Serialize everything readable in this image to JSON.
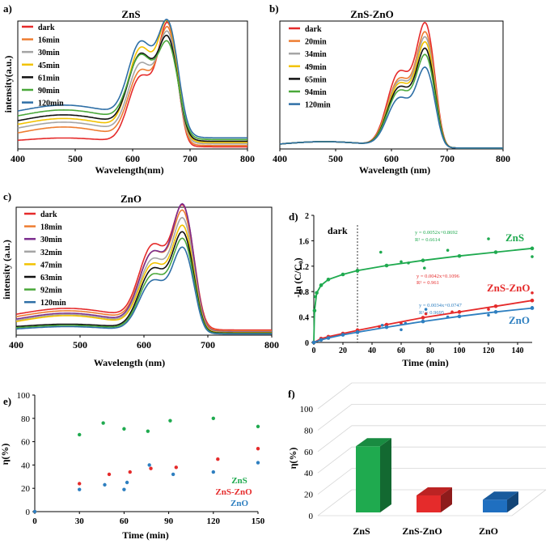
{
  "chart_data": [
    {
      "panel": "a)",
      "type": "line",
      "title": "ZnS",
      "xlabel": "Wavelength(nm)",
      "ylabel": "intensity(a.u.)",
      "xlim": [
        400,
        800
      ],
      "xticks": [
        "400",
        "500",
        "600",
        "700",
        "800"
      ],
      "legend_position": "top-left",
      "series": [
        {
          "name": "dark",
          "color": "#e52b2b",
          "peak": 0.95,
          "shoulder": 0.55,
          "base": 0.05
        },
        {
          "name": "16min",
          "color": "#ed7d31",
          "peak": 0.88,
          "shoulder": 0.56,
          "base": 0.08
        },
        {
          "name": "30min",
          "color": "#a5a5a5",
          "peak": 0.8,
          "shoulder": 0.58,
          "base": 0.12
        },
        {
          "name": "45min",
          "color": "#f2c200",
          "peak": 0.85,
          "shoulder": 0.68,
          "base": 0.15
        },
        {
          "name": "61min",
          "color": "#111111",
          "peak": 0.7,
          "shoulder": 0.6,
          "base": 0.18
        },
        {
          "name": "90min",
          "color": "#4aa83a",
          "peak": 0.62,
          "shoulder": 0.55,
          "base": 0.22
        },
        {
          "name": "120min",
          "color": "#2e6fa6",
          "peak": 0.75,
          "shoulder": 0.62,
          "base": 0.26
        }
      ]
    },
    {
      "panel": "b)",
      "type": "line",
      "title": "ZnS-ZnO",
      "xlabel": "Wavelength (nm)",
      "ylabel": "",
      "xlim": [
        400,
        800
      ],
      "xticks": [
        "400",
        "500",
        "600",
        "700",
        "800"
      ],
      "legend_position": "top-left",
      "series": [
        {
          "name": "dark",
          "color": "#e52b2b",
          "peak": 0.97,
          "shoulder": 0.62,
          "base": 0.02
        },
        {
          "name": "20min",
          "color": "#ed7d31",
          "peak": 0.9,
          "shoulder": 0.56,
          "base": 0.02
        },
        {
          "name": "34min",
          "color": "#a5a5a5",
          "peak": 0.86,
          "shoulder": 0.54,
          "base": 0.02
        },
        {
          "name": "49min",
          "color": "#f2c200",
          "peak": 0.82,
          "shoulder": 0.52,
          "base": 0.02
        },
        {
          "name": "65min",
          "color": "#111111",
          "peak": 0.77,
          "shoulder": 0.49,
          "base": 0.02
        },
        {
          "name": "94min",
          "color": "#4aa83a",
          "peak": 0.72,
          "shoulder": 0.46,
          "base": 0.02
        },
        {
          "name": "120min",
          "color": "#2e6fa6",
          "peak": 0.62,
          "shoulder": 0.4,
          "base": 0.02
        }
      ]
    },
    {
      "panel": "c)",
      "type": "line",
      "title": "ZnO",
      "xlabel": "Wavelength (nm)",
      "ylabel": "intensity (a.u.)",
      "xlim": [
        400,
        800
      ],
      "xticks": [
        "400",
        "500",
        "600",
        "700",
        "800"
      ],
      "legend_position": "top-left",
      "series": [
        {
          "name": "dark",
          "color": "#e52b2b",
          "peak": 0.9,
          "shoulder": 0.62,
          "base": 0.12
        },
        {
          "name": "18min",
          "color": "#ed7d31",
          "peak": 0.88,
          "shoulder": 0.58,
          "base": 0.1
        },
        {
          "name": "30min",
          "color": "#7b2d8e",
          "peak": 0.95,
          "shoulder": 0.6,
          "base": 0.08
        },
        {
          "name": "32min",
          "color": "#a5a5a5",
          "peak": 0.85,
          "shoulder": 0.55,
          "base": 0.07
        },
        {
          "name": "47min",
          "color": "#f2c200",
          "peak": 0.8,
          "shoulder": 0.52,
          "base": 0.06
        },
        {
          "name": "63min",
          "color": "#111111",
          "peak": 0.76,
          "shoulder": 0.5,
          "base": 0.05
        },
        {
          "name": "92min",
          "color": "#4aa83a",
          "peak": 0.72,
          "shoulder": 0.46,
          "base": 0.04
        },
        {
          "name": "120min",
          "color": "#2e6fa6",
          "peak": 0.66,
          "shoulder": 0.42,
          "base": 0.03
        }
      ]
    },
    {
      "panel": "d)",
      "type": "scatter",
      "title": "",
      "xlabel": "Time (min)",
      "ylabel": "-ln (C/C₀)",
      "xlim": [
        0,
        150
      ],
      "ylim": [
        0,
        2
      ],
      "xticks": [
        "0",
        "20",
        "40",
        "60",
        "80",
        "100",
        "120",
        "140"
      ],
      "yticks": [
        "0",
        "0.4",
        "0.8",
        "1.2",
        "1.6",
        "2"
      ],
      "annotation": "dark",
      "dark_line_x": 30,
      "series": [
        {
          "name": "ZnS",
          "color": "#1faa4f",
          "equation": "y = 0.0052x+0.8692",
          "r2": "R² = 0.6614",
          "points": [
            [
              0,
              0
            ],
            [
              1,
              0.72
            ],
            [
              30,
              1.12
            ],
            [
              46,
              1.42
            ],
            [
              60,
              1.27
            ],
            [
              65,
              1.25
            ],
            [
              76,
              1.17
            ],
            [
              92,
              1.45
            ],
            [
              120,
              1.63
            ],
            [
              150,
              1.35
            ]
          ],
          "fit": [
            [
              0,
              0
            ],
            [
              0.5,
              0.5
            ],
            [
              2,
              0.78
            ],
            [
              5,
              0.9
            ],
            [
              10,
              0.99
            ],
            [
              20,
              1.07
            ],
            [
              30,
              1.13
            ],
            [
              50,
              1.21
            ],
            [
              75,
              1.29
            ],
            [
              100,
              1.36
            ],
            [
              125,
              1.42
            ],
            [
              150,
              1.48
            ]
          ]
        },
        {
          "name": "ZnS-ZnO",
          "color": "#e52b2b",
          "equation": "y = 0.0042x+0.1096",
          "r2": "R² = 0.961",
          "points": [
            [
              0,
              0
            ],
            [
              30,
              0.2
            ],
            [
              45,
              0.25
            ],
            [
              60,
              0.3
            ],
            [
              77,
              0.45
            ],
            [
              95,
              0.48
            ],
            [
              120,
              0.52
            ],
            [
              150,
              0.78
            ]
          ],
          "fit": [
            [
              0,
              0
            ],
            [
              5,
              0.06
            ],
            [
              10,
              0.09
            ],
            [
              20,
              0.14
            ],
            [
              30,
              0.19
            ],
            [
              50,
              0.28
            ],
            [
              75,
              0.39
            ],
            [
              100,
              0.48
            ],
            [
              125,
              0.57
            ],
            [
              150,
              0.66
            ]
          ]
        },
        {
          "name": "ZnO",
          "color": "#2e7fc0",
          "equation": "y = 0.0034x+0.0747",
          "r2": "R² = 0.9695",
          "points": [
            [
              0,
              0
            ],
            [
              30,
              0.17
            ],
            [
              47,
              0.27
            ],
            [
              60,
              0.2
            ],
            [
              63,
              0.3
            ],
            [
              77,
              0.52
            ],
            [
              92,
              0.4
            ],
            [
              120,
              0.43
            ],
            [
              150,
              0.55
            ]
          ],
          "fit": [
            [
              0,
              0
            ],
            [
              5,
              0.04
            ],
            [
              10,
              0.07
            ],
            [
              20,
              0.12
            ],
            [
              30,
              0.16
            ],
            [
              50,
              0.24
            ],
            [
              75,
              0.33
            ],
            [
              100,
              0.41
            ],
            [
              125,
              0.48
            ],
            [
              150,
              0.54
            ]
          ]
        }
      ]
    },
    {
      "panel": "e)",
      "type": "scatter",
      "title": "",
      "xlabel": "Time (min)",
      "ylabel": "η(%)",
      "xlim": [
        0,
        150
      ],
      "ylim": [
        0,
        100
      ],
      "xticks": [
        "0",
        "30",
        "60",
        "90",
        "120",
        "150"
      ],
      "yticks": [
        "0",
        "20",
        "40",
        "60",
        "80",
        "100"
      ],
      "legend_position": "bottom-right",
      "series": [
        {
          "name": "ZnS",
          "color": "#1faa4f",
          "points": [
            [
              0,
              0
            ],
            [
              30,
              66
            ],
            [
              46,
              76
            ],
            [
              60,
              71
            ],
            [
              76,
              69
            ],
            [
              91,
              78
            ],
            [
              120,
              80
            ],
            [
              150,
              73
            ]
          ]
        },
        {
          "name": "ZnS-ZnO",
          "color": "#e52b2b",
          "points": [
            [
              0,
              0
            ],
            [
              30,
              24
            ],
            [
              50,
              32
            ],
            [
              64,
              34
            ],
            [
              78,
              37
            ],
            [
              95,
              38
            ],
            [
              123,
              45
            ],
            [
              150,
              54
            ]
          ]
        },
        {
          "name": "ZnO",
          "color": "#2e7fc0",
          "points": [
            [
              0,
              0
            ],
            [
              30,
              19
            ],
            [
              47,
              23
            ],
            [
              60,
              19
            ],
            [
              62,
              25
            ],
            [
              77,
              40
            ],
            [
              93,
              32
            ],
            [
              120,
              34
            ],
            [
              150,
              42
            ]
          ]
        }
      ]
    },
    {
      "panel": "f)",
      "type": "bar",
      "title": "",
      "xlabel": "",
      "ylabel": "η(%)",
      "ylim": [
        0,
        100
      ],
      "yticks": [
        "0",
        "20",
        "40",
        "60",
        "80",
        "100"
      ],
      "categories": [
        "ZnS",
        "ZnS-ZnO",
        "ZnO"
      ],
      "values": [
        68,
        22,
        18
      ],
      "colors": [
        "#1faa4f",
        "#e52b2b",
        "#1f6fc0"
      ]
    }
  ]
}
